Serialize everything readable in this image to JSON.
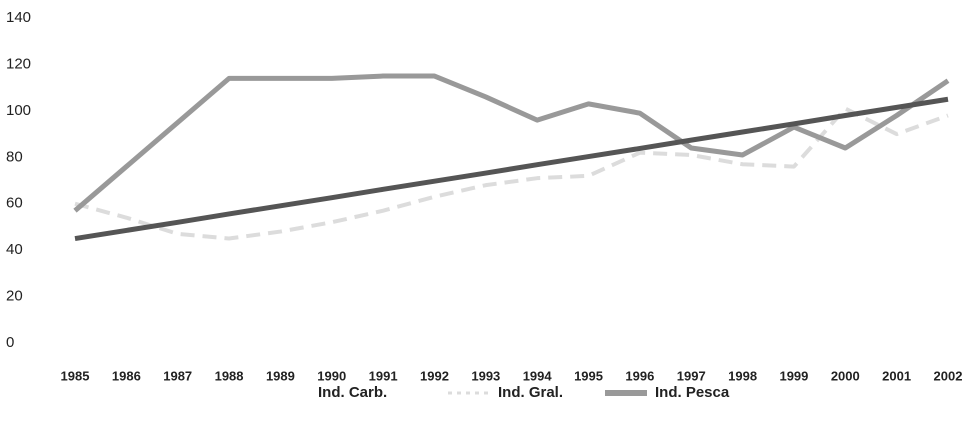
{
  "chart_data": {
    "type": "line",
    "categories": [
      "1985",
      "1986",
      "1987",
      "1988",
      "1989",
      "1990",
      "1991",
      "1992",
      "1993",
      "1994",
      "1995",
      "1996",
      "1997",
      "1998",
      "1999",
      "2000",
      "2001",
      "2002"
    ],
    "series": [
      {
        "name": "Ind. Carb.",
        "color": "#555555",
        "dashed": false,
        "values": [
          45,
          48.5,
          52,
          55.6,
          59.1,
          62.6,
          66.2,
          69.7,
          73.2,
          76.8,
          80.3,
          83.8,
          87.4,
          90.9,
          94.4,
          98,
          101.5,
          105
        ]
      },
      {
        "name": "Ind. Gral.",
        "color": "#dcdcdc",
        "dashed": true,
        "values": [
          60,
          54,
          47,
          45,
          48,
          52,
          57,
          63,
          68,
          71,
          72,
          82,
          81,
          77,
          76,
          101,
          90,
          98
        ]
      },
      {
        "name": "Ind. Pesca",
        "color": "#999999",
        "dashed": false,
        "values": [
          57,
          76,
          95,
          114,
          114,
          114,
          115,
          115,
          106,
          96,
          103,
          99,
          84,
          81,
          93,
          84,
          98,
          113
        ]
      }
    ],
    "ylim": [
      0,
      140
    ],
    "yticks": [
      0,
      20,
      40,
      60,
      80,
      100,
      120,
      140
    ],
    "grid": false,
    "legend": "bottom"
  }
}
